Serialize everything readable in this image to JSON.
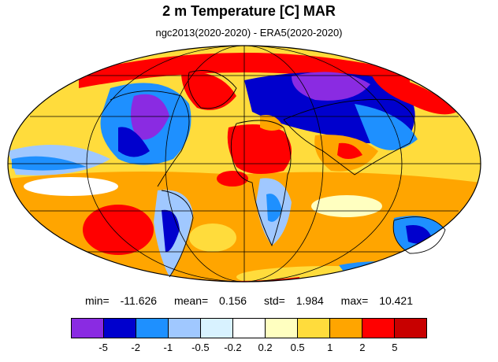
{
  "title": "2 m Temperature [C] MAR",
  "subtitle": "ngc2013(2020-2020) - ERA5(2020-2020)",
  "stats": {
    "min_label": "min=",
    "min": "-11.626",
    "mean_label": "mean=",
    "mean": "0.156",
    "std_label": "std=",
    "std": "1.984",
    "max_label": "max=",
    "max": "10.421"
  },
  "colorbar": {
    "colors": [
      "#8a2be2",
      "#0000cd",
      "#1e90ff",
      "#a0c8ff",
      "#d8f2ff",
      "#ffffff",
      "#ffffc0",
      "#ffdc3c",
      "#ffa500",
      "#ff0000",
      "#c80000"
    ],
    "tick_labels": [
      "-5",
      "-2",
      "-1",
      "-0.5",
      "-0.2",
      "0.2",
      "0.5",
      "1",
      "2",
      "5"
    ]
  }
}
